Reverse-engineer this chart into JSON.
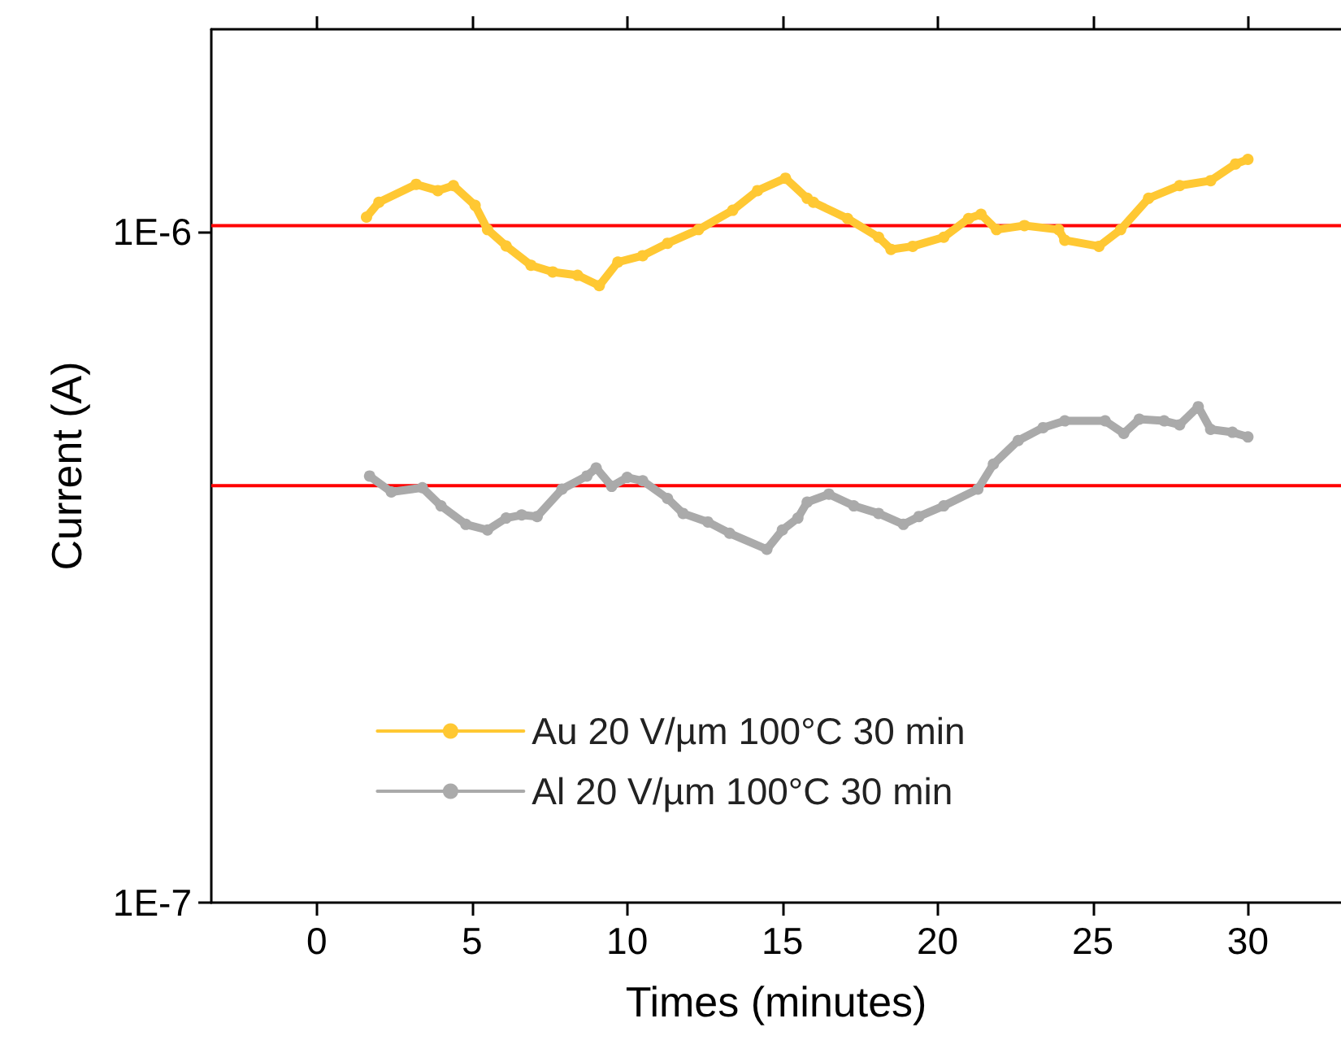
{
  "chart_data": {
    "type": "line",
    "xlabel": "Times (minutes)",
    "ylabel": "Current (A)",
    "xlim": [
      -3.4,
      33
    ],
    "xticks": [
      0,
      5,
      10,
      15,
      20,
      25,
      30
    ],
    "ylim": [
      1e-07,
      2e-06
    ],
    "yticks": [
      {
        "value": 1e-07,
        "label": "1E-7"
      },
      {
        "value": 1e-06,
        "label": "1E-6"
      }
    ],
    "log": "y",
    "grid": false,
    "legend": "bottom",
    "marker": "circle",
    "line_style": "solid",
    "ref_lines": [
      {
        "axis": "y",
        "value": 1.02e-06,
        "color": "#ff0000"
      },
      {
        "axis": "y",
        "value": 4.18e-07,
        "color": "#ff0000"
      }
    ],
    "series": [
      {
        "name": "Au 20 V/µm 100°C 30 min",
        "color": "#ffc833",
        "x": [
          1.6,
          2.0,
          3.2,
          3.9,
          4.4,
          5.1,
          5.5,
          6.1,
          6.9,
          7.6,
          8.4,
          9.1,
          9.7,
          10.5,
          11.3,
          12.3,
          13.4,
          14.2,
          15.1,
          15.8,
          16.0,
          17.1,
          18.1,
          18.5,
          19.2,
          20.2,
          21.0,
          21.4,
          21.9,
          22.8,
          23.9,
          24.1,
          25.2,
          25.9,
          26.8,
          27.8,
          28.8,
          29.6,
          30.0
        ],
        "values": [
          1.05e-06,
          1.105e-06,
          1.175e-06,
          1.15e-06,
          1.17e-06,
          1.093e-06,
          1.006e-06,
          9.51e-07,
          8.9e-07,
          8.7e-07,
          8.6e-07,
          8.3e-07,
          9e-07,
          9.2e-07,
          9.6e-07,
          1.006e-06,
          1.075e-06,
          1.15e-06,
          1.2e-06,
          1.12e-06,
          1.105e-06,
          1.045e-06,
          9.8e-07,
          9.4e-07,
          9.5e-07,
          9.8e-07,
          1.045e-06,
          1.06e-06,
          1.006e-06,
          1.02e-06,
          1.006e-06,
          9.7e-07,
          9.5e-07,
          1.006e-06,
          1.12e-06,
          1.17e-06,
          1.19e-06,
          1.26e-06,
          1.28e-06
        ]
      },
      {
        "name": "Al 20 V/µm 100°C 30 min",
        "color": "#aaaaaa",
        "x": [
          1.7,
          2.4,
          3.4,
          4.0,
          4.8,
          5.5,
          6.1,
          6.6,
          7.1,
          7.9,
          8.7,
          9.0,
          9.5,
          10.0,
          10.5,
          11.3,
          11.8,
          12.6,
          13.3,
          14.5,
          15.0,
          15.5,
          15.8,
          16.5,
          17.3,
          18.1,
          18.9,
          19.4,
          20.2,
          21.3,
          21.8,
          22.6,
          23.4,
          24.1,
          25.4,
          26.0,
          26.5,
          27.3,
          27.8,
          28.4,
          28.8,
          29.5,
          30.0
        ],
        "values": [
          4.32e-07,
          4.09e-07,
          4.15e-07,
          3.9e-07,
          3.66e-07,
          3.59e-07,
          3.74e-07,
          3.78e-07,
          3.76e-07,
          4.13e-07,
          4.32e-07,
          4.44e-07,
          4.17e-07,
          4.3e-07,
          4.25e-07,
          4e-07,
          3.8e-07,
          3.69e-07,
          3.55e-07,
          3.36e-07,
          3.59e-07,
          3.74e-07,
          3.95e-07,
          4.06e-07,
          3.9e-07,
          3.8e-07,
          3.66e-07,
          3.76e-07,
          3.9e-07,
          4.13e-07,
          4.5e-07,
          4.88e-07,
          5.1e-07,
          5.22e-07,
          5.22e-07,
          5e-07,
          5.25e-07,
          5.22e-07,
          5.15e-07,
          5.48e-07,
          5.07e-07,
          5.02e-07,
          4.94e-07
        ]
      }
    ]
  }
}
